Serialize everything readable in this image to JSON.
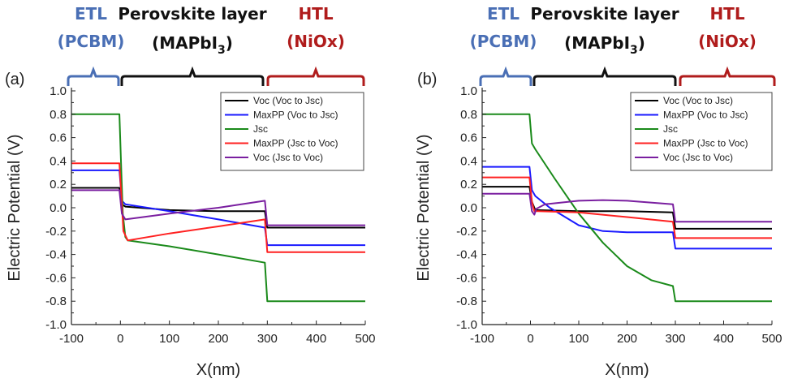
{
  "header": {
    "etl_line1": "ETL",
    "etl_line2": "(PCBM)",
    "perovskite_line1": "Perovskite layer",
    "perovskite_line2_main": "(MAPbI",
    "perovskite_line2_sub": "3",
    "perovskite_line2_end": ")",
    "htl_line1": "HTL",
    "htl_line2": "(NiOx)"
  },
  "colors": {
    "etl": "#4a6fb5",
    "perovskite": "#111111",
    "htl": "#b01c1c",
    "Voc (Voc to Jsc)": "#000000",
    "MaxPP (Voc to Jsc)": "#1a1aff",
    "Jsc": "#1a8a1a",
    "MaxPP (Jsc to Voc)": "#ff2020",
    "Voc (Jsc to Voc)": "#7a1fa0"
  },
  "chart_data": [
    {
      "type": "line",
      "panel_label": "(a)",
      "xlabel": "X(nm)",
      "ylabel": "Electric Potential (V)",
      "xlim": [
        -100,
        500
      ],
      "ylim": [
        -1.0,
        1.0
      ],
      "xticks": [
        "-100",
        "0",
        "100",
        "200",
        "300",
        "400",
        "500"
      ],
      "yticks": [
        "-1.0",
        "-0.8",
        "-0.6",
        "-0.4",
        "-0.2",
        "0.0",
        "0.2",
        "0.4",
        "0.6",
        "0.8",
        "1.0"
      ],
      "grid": false,
      "legend_position": "top-right",
      "series": [
        {
          "name": "Voc (Voc to Jsc)",
          "points": [
            [
              -100,
              0.17
            ],
            [
              -2,
              0.17
            ],
            [
              3,
              0.03
            ],
            [
              10,
              0.01
            ],
            [
              100,
              -0.02
            ],
            [
              200,
              -0.03
            ],
            [
              295,
              -0.03
            ],
            [
              300,
              -0.17
            ],
            [
              500,
              -0.17
            ]
          ]
        },
        {
          "name": "MaxPP (Voc to Jsc)",
          "points": [
            [
              -100,
              0.32
            ],
            [
              -2,
              0.32
            ],
            [
              3,
              0.06
            ],
            [
              10,
              0.03
            ],
            [
              100,
              -0.03
            ],
            [
              200,
              -0.1
            ],
            [
              295,
              -0.17
            ],
            [
              300,
              -0.32
            ],
            [
              500,
              -0.32
            ]
          ]
        },
        {
          "name": "Jsc",
          "points": [
            [
              -100,
              0.8
            ],
            [
              -2,
              0.8
            ],
            [
              2,
              0.3
            ],
            [
              5,
              -0.05
            ],
            [
              10,
              -0.25
            ],
            [
              15,
              -0.28
            ],
            [
              100,
              -0.33
            ],
            [
              200,
              -0.4
            ],
            [
              295,
              -0.47
            ],
            [
              300,
              -0.8
            ],
            [
              500,
              -0.8
            ]
          ]
        },
        {
          "name": "MaxPP (Jsc to Voc)",
          "points": [
            [
              -100,
              0.38
            ],
            [
              -2,
              0.38
            ],
            [
              2,
              0.1
            ],
            [
              6,
              -0.2
            ],
            [
              15,
              -0.28
            ],
            [
              100,
              -0.22
            ],
            [
              200,
              -0.16
            ],
            [
              295,
              -0.1
            ],
            [
              300,
              -0.38
            ],
            [
              500,
              -0.38
            ]
          ]
        },
        {
          "name": "Voc (Jsc to Voc)",
          "points": [
            [
              -100,
              0.15
            ],
            [
              -2,
              0.15
            ],
            [
              3,
              -0.05
            ],
            [
              10,
              -0.1
            ],
            [
              100,
              -0.05
            ],
            [
              200,
              0.0
            ],
            [
              295,
              0.06
            ],
            [
              300,
              -0.15
            ],
            [
              500,
              -0.15
            ]
          ]
        }
      ]
    },
    {
      "type": "line",
      "panel_label": "(b)",
      "xlabel": "X(nm)",
      "ylabel": "Electric Potential (V)",
      "xlim": [
        -100,
        500
      ],
      "ylim": [
        -1.0,
        1.0
      ],
      "xticks": [
        "-100",
        "0",
        "100",
        "200",
        "300",
        "400",
        "500"
      ],
      "yticks": [
        "-1.0",
        "-0.8",
        "-0.6",
        "-0.4",
        "-0.2",
        "0.0",
        "0.2",
        "0.4",
        "0.6",
        "0.8",
        "1.0"
      ],
      "grid": false,
      "legend_position": "top-right",
      "series": [
        {
          "name": "Voc (Voc to Jsc)",
          "points": [
            [
              -100,
              0.18
            ],
            [
              -2,
              0.18
            ],
            [
              3,
              0.05
            ],
            [
              10,
              -0.02
            ],
            [
              100,
              -0.03
            ],
            [
              200,
              -0.03
            ],
            [
              295,
              -0.04
            ],
            [
              300,
              -0.18
            ],
            [
              500,
              -0.18
            ]
          ]
        },
        {
          "name": "MaxPP (Voc to Jsc)",
          "points": [
            [
              -100,
              0.35
            ],
            [
              -2,
              0.35
            ],
            [
              3,
              0.15
            ],
            [
              10,
              0.1
            ],
            [
              40,
              0.0
            ],
            [
              100,
              -0.15
            ],
            [
              150,
              -0.2
            ],
            [
              200,
              -0.21
            ],
            [
              295,
              -0.21
            ],
            [
              300,
              -0.35
            ],
            [
              500,
              -0.35
            ]
          ]
        },
        {
          "name": "Jsc",
          "points": [
            [
              -100,
              0.8
            ],
            [
              -2,
              0.8
            ],
            [
              3,
              0.55
            ],
            [
              10,
              0.5
            ],
            [
              50,
              0.25
            ],
            [
              100,
              -0.05
            ],
            [
              150,
              -0.3
            ],
            [
              200,
              -0.5
            ],
            [
              250,
              -0.62
            ],
            [
              295,
              -0.67
            ],
            [
              300,
              -0.8
            ],
            [
              500,
              -0.8
            ]
          ]
        },
        {
          "name": "MaxPP (Jsc to Voc)",
          "points": [
            [
              -100,
              0.26
            ],
            [
              -2,
              0.26
            ],
            [
              3,
              0.05
            ],
            [
              8,
              -0.03
            ],
            [
              15,
              -0.03
            ],
            [
              100,
              -0.04
            ],
            [
              200,
              -0.08
            ],
            [
              295,
              -0.12
            ],
            [
              300,
              -0.26
            ],
            [
              500,
              -0.26
            ]
          ]
        },
        {
          "name": "Voc (Jsc to Voc)",
          "points": [
            [
              -100,
              0.12
            ],
            [
              -2,
              0.12
            ],
            [
              3,
              -0.03
            ],
            [
              8,
              -0.06
            ],
            [
              12,
              -0.01
            ],
            [
              30,
              0.03
            ],
            [
              100,
              0.06
            ],
            [
              150,
              0.065
            ],
            [
              200,
              0.06
            ],
            [
              295,
              0.03
            ],
            [
              300,
              -0.12
            ],
            [
              500,
              -0.12
            ]
          ]
        }
      ]
    }
  ]
}
